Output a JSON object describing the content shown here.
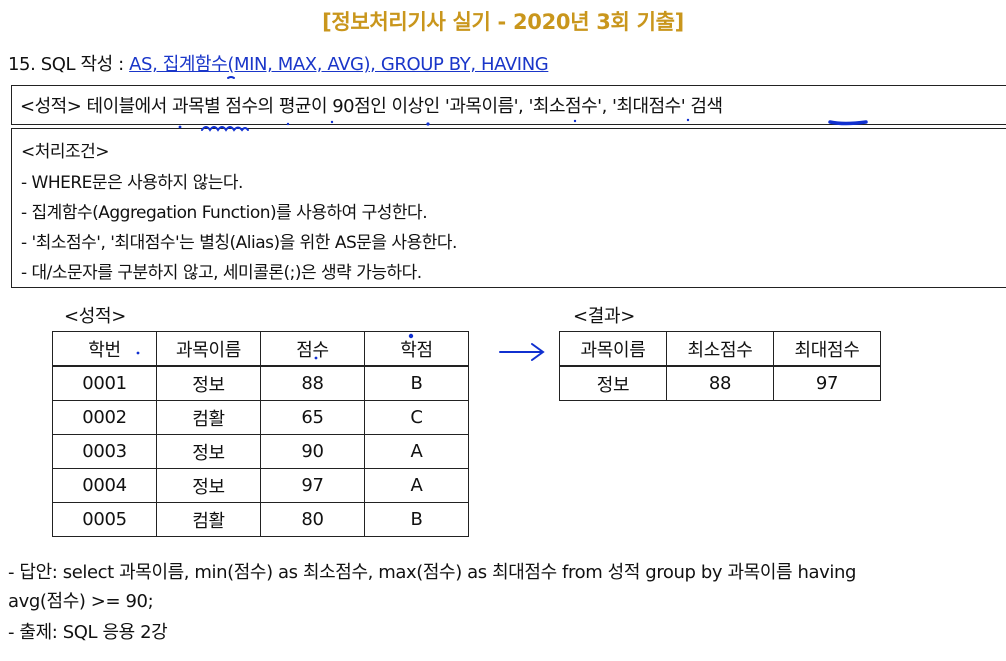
{
  "header": {
    "title": "[정보처리기사 실기 - 2020년 3회 기출]"
  },
  "question": {
    "prefix": "15. SQL 작성 : ",
    "topic": "AS, 집계함수(MIN, MAX, AVG), GROUP BY, HAVING"
  },
  "task": "<성적> 테이블에서 과목별 점수의 평균이 90점인 이상인 '과목이름', '최소점수', '최대점수' 검색",
  "conditions": {
    "heading": "<처리조건>",
    "items": [
      "- WHERE문은 사용하지 않는다.",
      "- 집계함수(Aggregation Function)를 사용하여 구성한다.",
      "- '최소점수', '최대점수'는 별칭(Alias)을 위한 AS문을 사용한다.",
      "- 대/소문자를 구분하지 않고, 세미콜론(;)은 생략 가능하다."
    ]
  },
  "grades_table": {
    "caption": "<성적>",
    "headers": [
      "학번",
      "과목이름",
      "점수",
      "학점"
    ],
    "rows": [
      [
        "0001",
        "정보",
        "88",
        "B"
      ],
      [
        "0002",
        "컴활",
        "65",
        "C"
      ],
      [
        "0003",
        "정보",
        "90",
        "A"
      ],
      [
        "0004",
        "정보",
        "97",
        "A"
      ],
      [
        "0005",
        "컴활",
        "80",
        "B"
      ]
    ]
  },
  "result_table": {
    "caption": "<결과>",
    "headers": [
      "과목이름",
      "최소점수",
      "최대점수"
    ],
    "rows": [
      [
        "정보",
        "88",
        "97"
      ]
    ]
  },
  "answer": {
    "line1": "- 답안: select 과목이름, min(점수) as 최소점수, max(점수) as 최대점수 from 성적 group by 과목이름 having",
    "line2": "avg(점수) >= 90;"
  },
  "source": "- 출제: SQL 응용 2강",
  "colors": {
    "title": "#c9961c",
    "link": "#1a36c9",
    "ink": "#1030d0"
  }
}
